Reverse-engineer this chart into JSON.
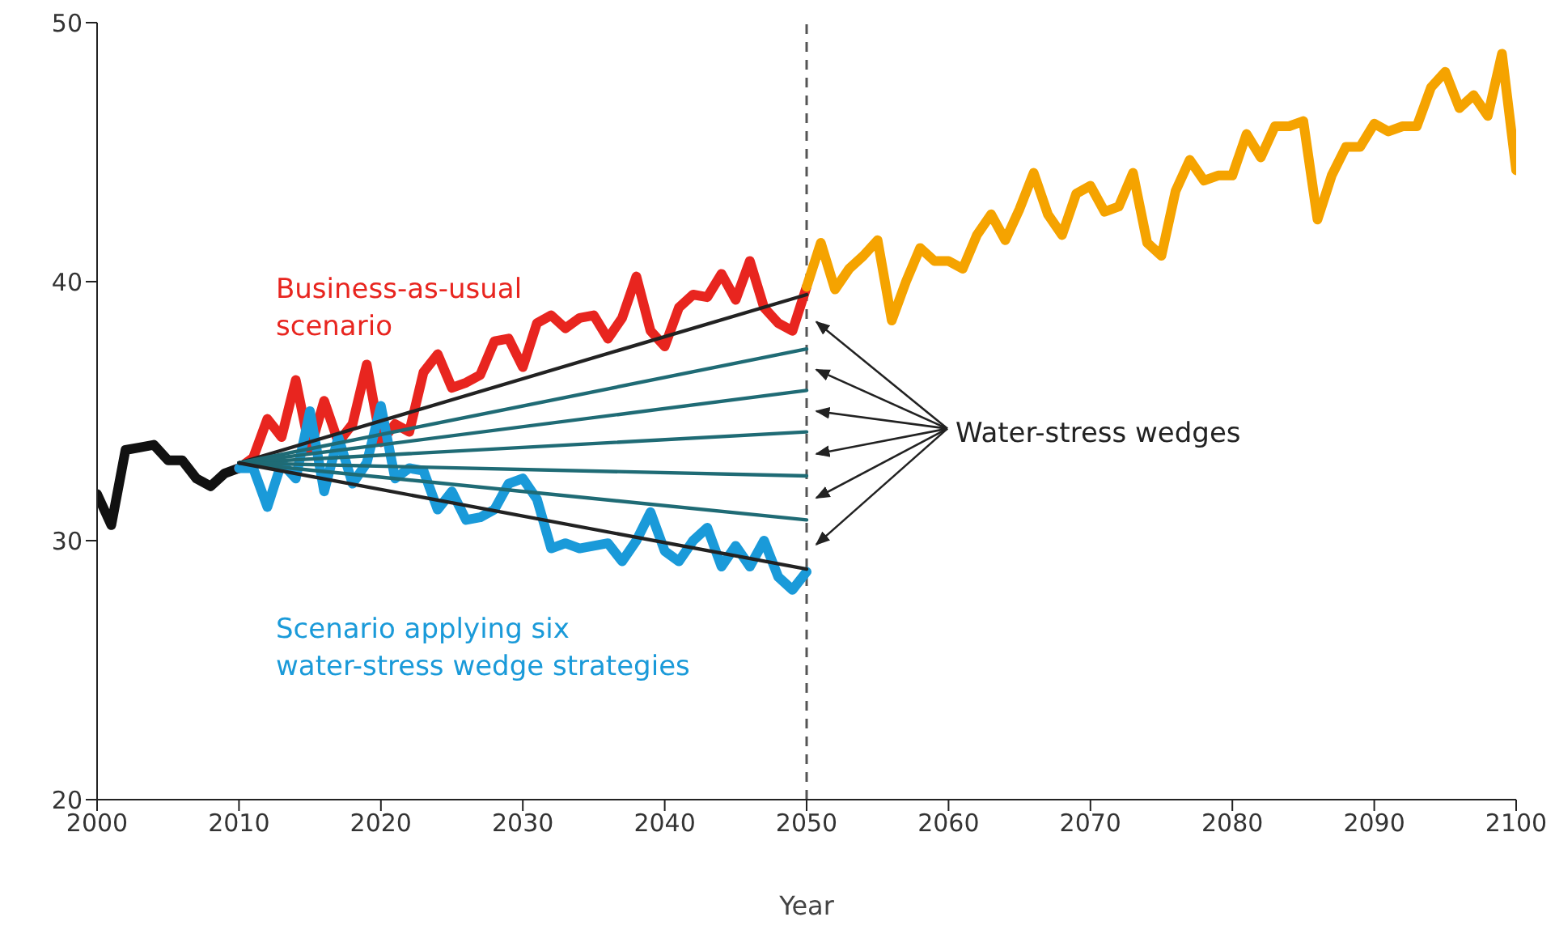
{
  "chart_data": {
    "type": "line",
    "xlabel": "Year",
    "xlim": [
      2000,
      2100
    ],
    "xticks": [
      2000,
      2010,
      2020,
      2030,
      2040,
      2050,
      2060,
      2070,
      2080,
      2090,
      2100
    ],
    "ylim": [
      20,
      50
    ],
    "yticks": [
      20,
      30,
      40,
      50
    ],
    "marker": "none",
    "line_style": "solid",
    "annotations": [
      "Water-stress wedges"
    ],
    "ref_lines": [
      {
        "axis": "x",
        "value": 2050,
        "color": "#555555",
        "line_style": "dashed"
      }
    ],
    "series": [
      {
        "color": "#111111",
        "x": [
          2000,
          2001,
          2002,
          2003,
          2004,
          2005,
          2006,
          2007,
          2008,
          2009,
          2010
        ],
        "values": [
          31.8,
          30.6,
          33.5,
          33.6,
          33.7,
          33.1,
          33.1,
          32.4,
          32.1,
          32.6,
          32.8
        ]
      },
      {
        "name": "Business-as-usual scenario",
        "color": "#e8251f",
        "x": [
          2010,
          2011,
          2012,
          2013,
          2014,
          2015,
          2016,
          2017,
          2018,
          2019,
          2020,
          2021,
          2022,
          2023,
          2024,
          2025,
          2026,
          2027,
          2028,
          2029,
          2030,
          2031,
          2032,
          2033,
          2034,
          2035,
          2036,
          2037,
          2038,
          2039,
          2040,
          2041,
          2042,
          2043,
          2044,
          2045,
          2046,
          2047,
          2048,
          2049,
          2050
        ],
        "values": [
          32.8,
          33.2,
          34.7,
          34.0,
          36.2,
          33.5,
          35.4,
          33.8,
          34.5,
          36.8,
          33.8,
          34.5,
          34.2,
          36.5,
          37.2,
          35.9,
          36.1,
          36.4,
          37.7,
          37.8,
          36.7,
          38.4,
          38.7,
          38.2,
          38.6,
          38.7,
          37.8,
          38.6,
          40.2,
          38.1,
          37.5,
          39.0,
          39.5,
          39.4,
          40.3,
          39.3,
          40.8,
          39.0,
          38.4,
          38.1,
          39.8
        ]
      },
      {
        "color": "#f5a300",
        "x": [
          2050,
          2051,
          2052,
          2053,
          2054,
          2055,
          2056,
          2057,
          2058,
          2059,
          2060,
          2061,
          2062,
          2063,
          2064,
          2065,
          2066,
          2067,
          2068,
          2069,
          2070,
          2071,
          2072,
          2073,
          2074,
          2075,
          2076,
          2077,
          2078,
          2079,
          2080,
          2081,
          2082,
          2083,
          2084,
          2085,
          2086,
          2087,
          2088,
          2089,
          2090,
          2091,
          2092,
          2093,
          2094,
          2095,
          2096,
          2097,
          2098,
          2099,
          2100
        ],
        "values": [
          39.8,
          41.5,
          39.7,
          40.5,
          41.0,
          41.6,
          38.5,
          40.0,
          41.3,
          40.8,
          40.8,
          40.5,
          41.8,
          42.6,
          41.6,
          42.8,
          44.2,
          42.6,
          41.8,
          43.4,
          43.7,
          42.7,
          42.9,
          44.2,
          41.5,
          41.0,
          43.5,
          44.7,
          43.9,
          44.1,
          44.1,
          45.7,
          44.8,
          46.0,
          46.0,
          46.2,
          42.4,
          44.1,
          45.2,
          45.2,
          46.1,
          45.8,
          46.0,
          46.0,
          47.5,
          48.1,
          46.7,
          47.2,
          46.4,
          48.8,
          44.3
        ]
      },
      {
        "name": "Scenario applying six water-stress wedge strategies",
        "color": "#1a9ad9",
        "x": [
          2010,
          2011,
          2012,
          2013,
          2014,
          2015,
          2016,
          2017,
          2018,
          2019,
          2020,
          2021,
          2022,
          2023,
          2024,
          2025,
          2026,
          2027,
          2028,
          2029,
          2030,
          2031,
          2032,
          2033,
          2034,
          2035,
          2036,
          2037,
          2038,
          2039,
          2040,
          2041,
          2042,
          2043,
          2044,
          2045,
          2046,
          2047,
          2048,
          2049,
          2050
        ],
        "values": [
          32.8,
          32.8,
          31.3,
          33.0,
          32.4,
          35.0,
          31.9,
          34.0,
          32.2,
          33.0,
          35.2,
          32.4,
          32.8,
          32.7,
          31.2,
          31.9,
          30.8,
          30.9,
          31.2,
          32.2,
          32.4,
          31.6,
          29.7,
          29.9,
          29.7,
          29.8,
          29.9,
          29.2,
          30.0,
          31.1,
          29.6,
          29.2,
          30.0,
          30.5,
          29.0,
          29.8,
          29.0,
          30.0,
          28.6,
          28.1,
          28.8
        ]
      },
      {
        "color": "#222222",
        "x": [
          2010,
          2050
        ],
        "values": [
          33.0,
          39.5
        ]
      },
      {
        "color": "#1f6b75",
        "x": [
          2010,
          2050
        ],
        "values": [
          33.0,
          37.4
        ]
      },
      {
        "color": "#1f6b75",
        "x": [
          2010,
          2050
        ],
        "values": [
          33.0,
          35.8
        ]
      },
      {
        "color": "#1f6b75",
        "x": [
          2010,
          2050
        ],
        "values": [
          33.0,
          34.2
        ]
      },
      {
        "color": "#1f6b75",
        "x": [
          2010,
          2050
        ],
        "values": [
          33.0,
          32.5
        ]
      },
      {
        "color": "#1f6b75",
        "x": [
          2010,
          2050
        ],
        "values": [
          33.0,
          30.8
        ]
      },
      {
        "color": "#222222",
        "x": [
          2010,
          2050
        ],
        "values": [
          33.0,
          28.9
        ]
      }
    ]
  }
}
